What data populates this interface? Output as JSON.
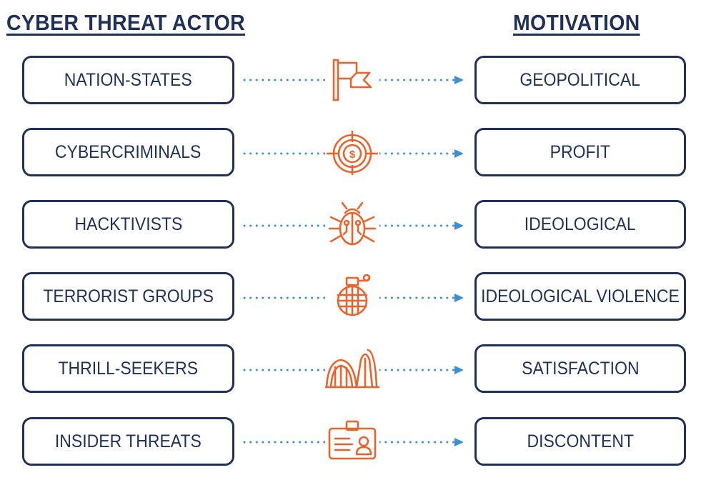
{
  "headers": {
    "actor": "CYBER THREAT ACTOR",
    "motivation": "MOTIVATION"
  },
  "colors": {
    "navy": "#1f3158",
    "orange": "#e8642c",
    "arrow_blue": "#3f8ed0"
  },
  "rows": [
    {
      "actor": "NATION-STATES",
      "motivation": "GEOPOLITICAL",
      "icon": "flag-icon"
    },
    {
      "actor": "CYBERCRIMINALS",
      "motivation": "PROFIT",
      "icon": "target-dollar-icon"
    },
    {
      "actor": "HACKTIVISTS",
      "motivation": "IDEOLOGICAL",
      "icon": "bug-icon"
    },
    {
      "actor": "TERRORIST GROUPS",
      "motivation": "IDEOLOGICAL VIOLENCE",
      "icon": "grenade-icon"
    },
    {
      "actor": "THRILL-SEEKERS",
      "motivation": "SATISFACTION",
      "icon": "roller-coaster-icon"
    },
    {
      "actor": "INSIDER THREATS",
      "motivation": "DISCONTENT",
      "icon": "id-badge-icon"
    }
  ]
}
